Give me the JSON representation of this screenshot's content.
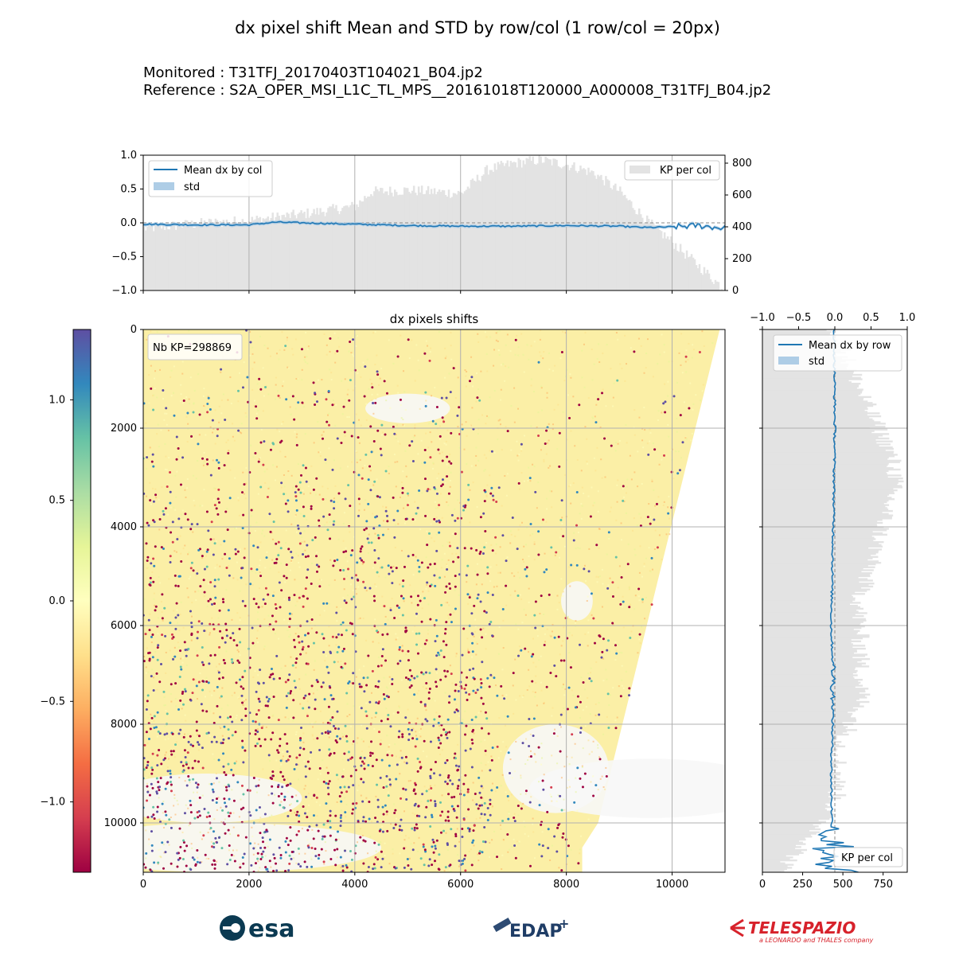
{
  "header": {
    "title": "dx pixel shift Mean and STD by row/col (1 row/col = 20px)",
    "monitored": "Monitored : T31TFJ_20170403T104021_B04.jp2",
    "reference": "Reference : S2A_OPER_MSI_L1C_TL_MPS__20161018T120000_A000008_T31TFJ_B04.jp2"
  },
  "colors": {
    "line": "#1f77b4",
    "std_fill": "#aecde6",
    "kp_fill": "#e3e3e3",
    "grid": "#b0b0b0",
    "cmap": [
      "#9e0142",
      "#d53e4f",
      "#f46d43",
      "#fdae61",
      "#fee08b",
      "#ffffbf",
      "#e6f598",
      "#abdda4",
      "#66c2a5",
      "#3288bd",
      "#5e4fa2"
    ]
  },
  "chart_data": [
    {
      "type": "line",
      "panel": "mean-by-col",
      "x_range": [
        0,
        11000
      ],
      "ylim": [
        -1.0,
        1.0
      ],
      "y_ticks": [
        "1.0",
        "0.5",
        "0.0",
        "−0.5",
        "−1.0"
      ],
      "y2_range": [
        0,
        850
      ],
      "y2_ticks": [
        "800",
        "600",
        "400",
        "200",
        "0"
      ],
      "legend_left": [
        "Mean dx by col",
        "std"
      ],
      "legend_right": [
        "KP per col"
      ],
      "series": [
        {
          "name": "Mean dx by col",
          "x": [
            0,
            1000,
            2000,
            2500,
            3000,
            4000,
            5000,
            6000,
            7000,
            8000,
            9000,
            9500,
            10000,
            10500,
            11000
          ],
          "y": [
            -0.02,
            -0.03,
            -0.03,
            0.01,
            0.0,
            -0.02,
            -0.04,
            -0.05,
            -0.05,
            -0.04,
            -0.05,
            -0.07,
            -0.06,
            -0.04,
            -0.08
          ]
        },
        {
          "name": "KP per col",
          "x": [
            0,
            1000,
            2000,
            3000,
            4000,
            4300,
            5000,
            6000,
            6500,
            7000,
            7500,
            8000,
            8500,
            9000,
            9500,
            10000,
            10500,
            11000
          ],
          "y": [
            390,
            420,
            440,
            480,
            530,
            620,
            630,
            610,
            760,
            800,
            820,
            790,
            740,
            620,
            440,
            300,
            150,
            0
          ]
        }
      ],
      "grid": true
    },
    {
      "type": "scatter",
      "panel": "dx-pixels-shifts",
      "title": "dx pixels shifts",
      "annotation": "Nb KP=298869",
      "xlim": [
        0,
        11000
      ],
      "ylim": [
        11000,
        0
      ],
      "x_ticks": [
        "0",
        "2000",
        "4000",
        "6000",
        "8000",
        "10000"
      ],
      "y_ticks": [
        "0",
        "2000",
        "4000",
        "6000",
        "8000",
        "10000"
      ],
      "footprint": [
        [
          0,
          0
        ],
        [
          10900,
          0
        ],
        [
          8600,
          10000
        ],
        [
          8300,
          10500
        ],
        [
          8300,
          11000
        ],
        [
          0,
          11000
        ]
      ],
      "grid": true
    },
    {
      "type": "colorbar",
      "panel": "colorbar",
      "range": [
        -1.35,
        1.35
      ],
      "ticks": [
        "1.0",
        "0.5",
        "0.0",
        "−0.5",
        "−1.0"
      ],
      "tick_values": [
        1.0,
        0.5,
        0.0,
        -0.5,
        -1.0
      ]
    },
    {
      "type": "line",
      "panel": "mean-by-row",
      "y_range": [
        0,
        11000
      ],
      "x_top_ticks": [
        "−1.0",
        "−0.5",
        "0.0",
        "0.5",
        "1.0"
      ],
      "x_bottom_ticks": [
        "0",
        "250",
        "500",
        "750"
      ],
      "legend_top": [
        "Mean dx by row",
        "std"
      ],
      "legend_bottom": [
        "KP per col"
      ],
      "series": [
        {
          "name": "Mean dx by row",
          "x": [
            -0.01,
            0.0,
            -0.02,
            -0.05,
            -0.02,
            -0.03,
            -0.05,
            -0.04,
            -0.02,
            0.0
          ],
          "y": [
            0,
            2000,
            4000,
            6000,
            7000,
            8000,
            9000,
            10000,
            10500,
            11000
          ]
        },
        {
          "name": "KP per col",
          "x": [
            450,
            650,
            800,
            830,
            700,
            600,
            620,
            480,
            460,
            330,
            100
          ],
          "y": [
            0,
            1500,
            2500,
            3000,
            4500,
            5500,
            7500,
            8500,
            9500,
            10200,
            11000
          ]
        }
      ],
      "grid": true
    }
  ],
  "logos": {
    "esa": "esa",
    "edap": "EDAP",
    "telespazio": "TELESPAZIO",
    "telespazio_sub": "a LEONARDO and THALES company"
  }
}
